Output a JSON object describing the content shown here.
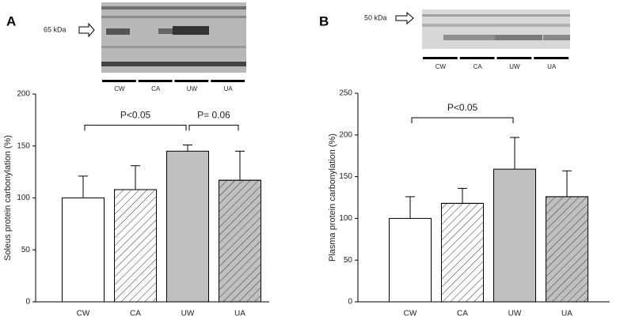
{
  "chart_data": [
    {
      "type": "bar",
      "panel": "A",
      "blot_label": "65 kDa",
      "blot_lanes": [
        "CW",
        "CA",
        "UW",
        "UA"
      ],
      "ylabel": "Soleus protein carbonylation (%)",
      "categories": [
        "CW",
        "CA",
        "UW",
        "UA"
      ],
      "values": [
        100,
        108,
        145,
        117
      ],
      "errors": [
        21,
        23,
        6,
        28
      ],
      "colors": [
        "#ffffff",
        "#ffffff",
        "#c0c0c0",
        "#c0c0c0"
      ],
      "hatched": [
        false,
        true,
        false,
        true
      ],
      "ylim": [
        0,
        200
      ],
      "yticks": [
        0,
        50,
        100,
        150,
        200
      ],
      "brackets": [
        {
          "label": "P<0.05",
          "between": [
            0,
            2
          ]
        },
        {
          "label": "P= 0.06",
          "between": [
            2,
            3
          ]
        }
      ]
    },
    {
      "type": "bar",
      "panel": "B",
      "blot_label": "50 kDa",
      "blot_lanes": [
        "CW",
        "CA",
        "UW",
        "UA"
      ],
      "ylabel": "Plasma protein carbonylation (%)",
      "categories": [
        "CW",
        "CA",
        "UW",
        "UA"
      ],
      "values": [
        100,
        118,
        159,
        126
      ],
      "errors": [
        26,
        18,
        38,
        31
      ],
      "colors": [
        "#ffffff",
        "#ffffff",
        "#c0c0c0",
        "#c0c0c0"
      ],
      "hatched": [
        false,
        true,
        false,
        true
      ],
      "ylim": [
        0,
        250
      ],
      "yticks": [
        0,
        50,
        100,
        150,
        200,
        250
      ],
      "brackets": [
        {
          "label": "P<0.05",
          "between": [
            0,
            2
          ]
        }
      ]
    }
  ]
}
